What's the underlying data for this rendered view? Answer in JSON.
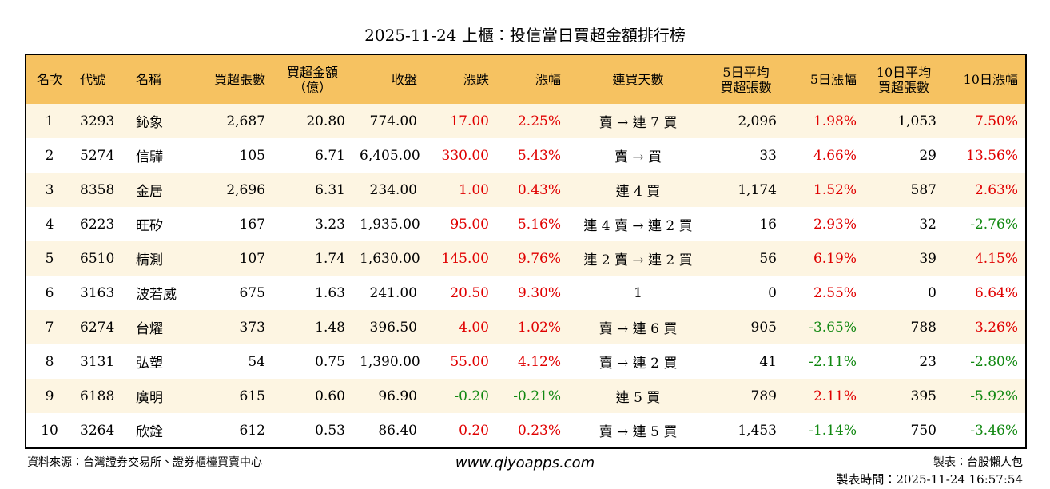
{
  "title": "2025-11-24 上櫃：投信當日買超金額排行榜",
  "table": {
    "headers": [
      [
        "名次"
      ],
      [
        "代號"
      ],
      [
        "名稱"
      ],
      [
        "買超張數"
      ],
      [
        "買超金額",
        "（億）"
      ],
      [
        "收盤"
      ],
      [
        "漲跌"
      ],
      [
        "漲幅"
      ],
      [
        "連買天數"
      ],
      [
        "5日平均",
        "買超張數"
      ],
      [
        "5日漲幅"
      ],
      [
        "10日平均",
        "買超張數"
      ],
      [
        "10日漲幅"
      ]
    ],
    "rows": [
      [
        "1",
        "3293",
        "鈊象",
        "2,687",
        "20.80",
        "774.00",
        "17.00",
        "2.25%",
        "賣 → 連 7 買",
        "2,096",
        "1.98%",
        "1,053",
        "7.50%"
      ],
      [
        "2",
        "5274",
        "信驊",
        "105",
        "6.71",
        "6,405.00",
        "330.00",
        "5.43%",
        "賣 → 買",
        "33",
        "4.66%",
        "29",
        "13.56%"
      ],
      [
        "3",
        "8358",
        "金居",
        "2,696",
        "6.31",
        "234.00",
        "1.00",
        "0.43%",
        "連 4 買",
        "1,174",
        "1.52%",
        "587",
        "2.63%"
      ],
      [
        "4",
        "6223",
        "旺矽",
        "167",
        "3.23",
        "1,935.00",
        "95.00",
        "5.16%",
        "連 4 賣 → 連 2 買",
        "16",
        "2.93%",
        "32",
        "-2.76%"
      ],
      [
        "5",
        "6510",
        "精測",
        "107",
        "1.74",
        "1,630.00",
        "145.00",
        "9.76%",
        "連 2 賣 → 連 2 買",
        "56",
        "6.19%",
        "39",
        "4.15%"
      ],
      [
        "6",
        "3163",
        "波若威",
        "675",
        "1.63",
        "241.00",
        "20.50",
        "9.30%",
        "1",
        "0",
        "2.55%",
        "0",
        "6.64%"
      ],
      [
        "7",
        "6274",
        "台燿",
        "373",
        "1.48",
        "396.50",
        "4.00",
        "1.02%",
        "賣 → 連 6 買",
        "905",
        "-3.65%",
        "788",
        "3.26%"
      ],
      [
        "8",
        "3131",
        "弘塑",
        "54",
        "0.75",
        "1,390.00",
        "55.00",
        "4.12%",
        "賣 → 連 2 買",
        "41",
        "-2.11%",
        "23",
        "-2.80%"
      ],
      [
        "9",
        "6188",
        "廣明",
        "615",
        "0.60",
        "96.90",
        "-0.20",
        "-0.21%",
        "連 5 買",
        "789",
        "2.11%",
        "395",
        "-5.92%"
      ],
      [
        "10",
        "3264",
        "欣銓",
        "612",
        "0.53",
        "86.40",
        "0.20",
        "0.23%",
        "賣 → 連 5 買",
        "1,453",
        "-1.14%",
        "750",
        "-3.46%"
      ]
    ]
  },
  "footer": {
    "source": "資料來源：台灣證券交易所、證券櫃檯買賣中心",
    "site": "www.qiyoapps.com",
    "author": "製表：台股懶人包",
    "time": "製表時間：2025-11-24 16:57:54"
  }
}
